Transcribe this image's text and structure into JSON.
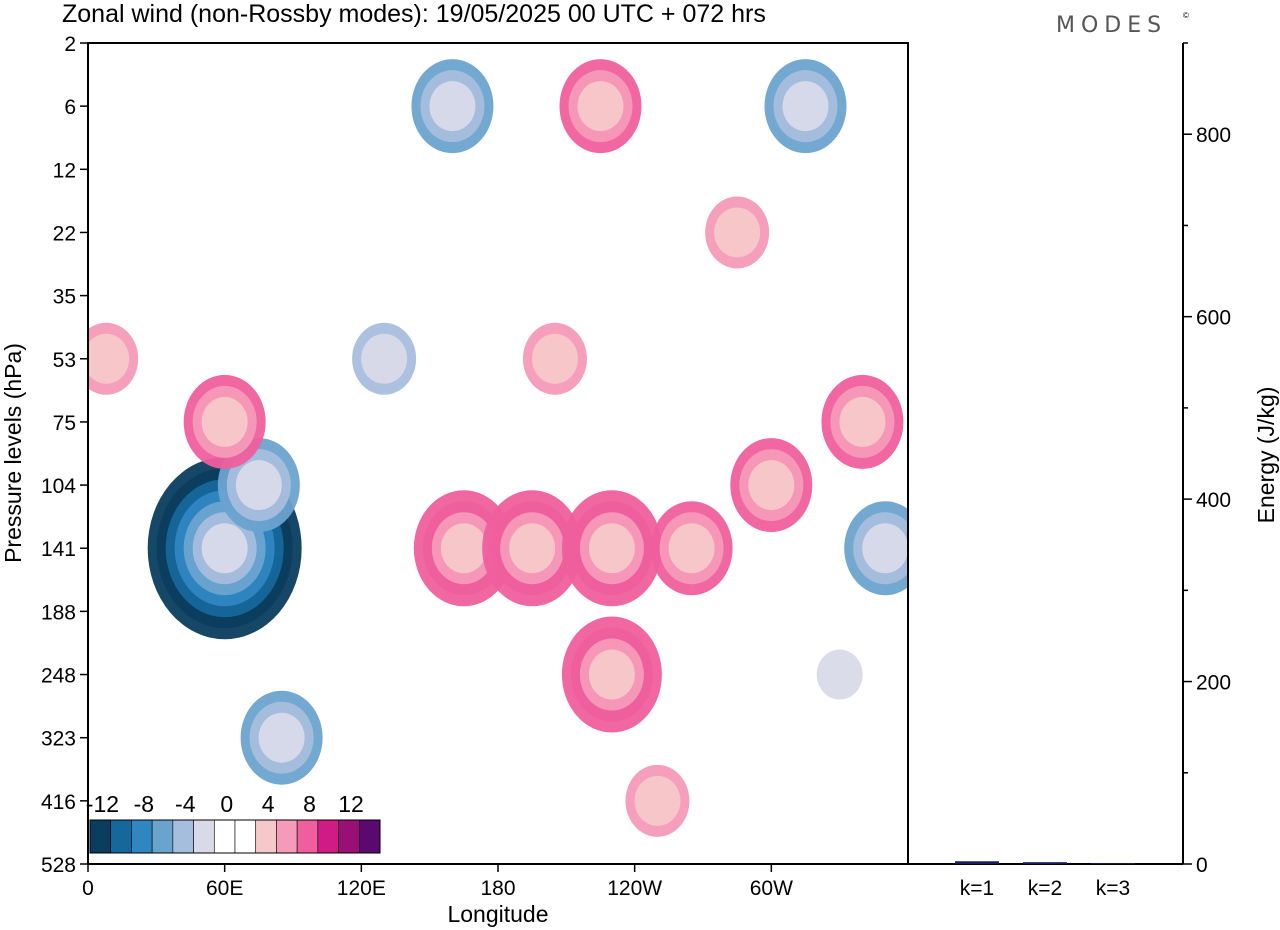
{
  "title": "Zonal wind (non-Rossby modes):  19/05/2025  00 UTC  + 072 hrs",
  "brand": "MODES",
  "brand_mark": "©",
  "chart_data": [
    {
      "type": "heatmap",
      "xlabel": "Longitude",
      "ylabel": "Pressure levels (hPa)",
      "x_ticks": [
        "0",
        "60E",
        "120E",
        "180",
        "120W",
        "60W"
      ],
      "x_tick_values": [
        0,
        60,
        120,
        180,
        240,
        300
      ],
      "xlim": [
        0,
        360
      ],
      "y_ticks": [
        "2",
        "6",
        "12",
        "22",
        "35",
        "53",
        "75",
        "104",
        "141",
        "188",
        "248",
        "323",
        "416",
        "528"
      ],
      "grid": false,
      "colorbar": {
        "position": "bottom-left",
        "labels": [
          "-12",
          "-8",
          "-4",
          "0",
          "4",
          "8",
          "12"
        ],
        "colors": [
          "#0b3d5e",
          "#16679b",
          "#2f86c0",
          "#6ba3cf",
          "#a6bedd",
          "#d9dae9",
          "#ffffff",
          "#ffffff",
          "#f7c8c8",
          "#f59ab8",
          "#ef5f9d",
          "#d01a86",
          "#9a0f73",
          "#5a0a6f"
        ]
      },
      "features": [
        {
          "lon": 60,
          "level": 141,
          "value": -14
        },
        {
          "lon": 75,
          "level": 104,
          "value": -6
        },
        {
          "lon": 85,
          "level": 323,
          "value": -6
        },
        {
          "lon": 130,
          "level": 53,
          "value": -4
        },
        {
          "lon": 160,
          "level": 6,
          "value": -6
        },
        {
          "lon": 315,
          "level": 6,
          "value": -6
        },
        {
          "lon": 350,
          "level": 141,
          "value": -6
        },
        {
          "lon": 330,
          "level": 248,
          "value": -2
        },
        {
          "lon": 165,
          "level": 141,
          "value": 8
        },
        {
          "lon": 195,
          "level": 141,
          "value": 8
        },
        {
          "lon": 230,
          "level": 141,
          "value": 8
        },
        {
          "lon": 230,
          "level": 248,
          "value": 8
        },
        {
          "lon": 265,
          "level": 141,
          "value": 6
        },
        {
          "lon": 225,
          "level": 6,
          "value": 6
        },
        {
          "lon": 300,
          "level": 104,
          "value": 6
        },
        {
          "lon": 340,
          "level": 75,
          "value": 6
        },
        {
          "lon": 60,
          "level": 75,
          "value": 6
        },
        {
          "lon": 8,
          "level": 53,
          "value": 4
        },
        {
          "lon": 250,
          "level": 416,
          "value": 4
        },
        {
          "lon": 205,
          "level": 53,
          "value": 3
        },
        {
          "lon": 285,
          "level": 22,
          "value": 3
        }
      ]
    },
    {
      "type": "bar",
      "categories": [
        "k=1",
        "k=2",
        "k=3"
      ],
      "values": [
        3,
        2,
        1
      ],
      "ylabel": "Energy (J/kg)",
      "ylim": [
        0,
        900
      ],
      "y_ticks": [
        0,
        200,
        400,
        600,
        800
      ],
      "bar_color": "#1a1a5e"
    }
  ]
}
